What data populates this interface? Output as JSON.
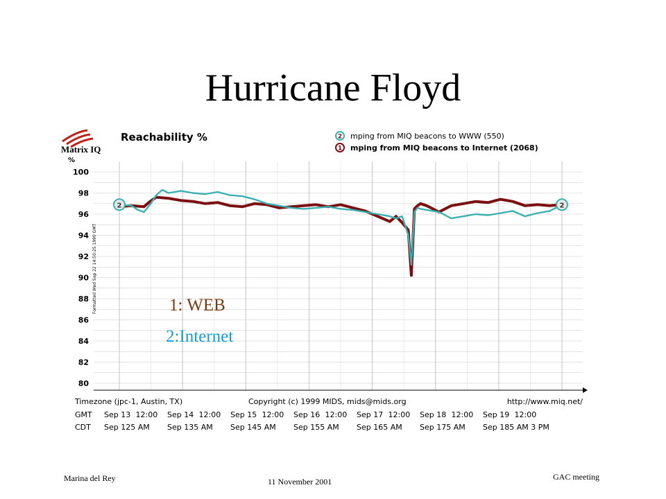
{
  "slide": {
    "title": "Hurricane Floyd",
    "overlay_web": "1: WEB",
    "overlay_internet": "2:Internet",
    "footer_left": "Marina del Rey",
    "footer_center": "11 November 2001",
    "footer_right": "GAC  meeting"
  },
  "colors": {
    "series1": "#7a1010",
    "series2": "#3ab0b0",
    "web_text": "#7a3a10",
    "internet_text": "#1a9ad8"
  },
  "chart_data": {
    "type": "line",
    "title": "Reachability %",
    "logo": "Matrix IQ",
    "ylabel": "%",
    "side_note": "Formatted Wed Sep 22 14:50:25 1999 GMT",
    "ylim": [
      80,
      100
    ],
    "yticks": [
      "100",
      "98",
      "96",
      "94",
      "92",
      "90",
      "88",
      "86",
      "84",
      "82",
      "80"
    ],
    "grid": true,
    "legend_position": "top-right",
    "legend": [
      {
        "marker": "2",
        "label": "mping from MIQ beacons to WWW (550)"
      },
      {
        "marker": "1",
        "label": "mping from MIQ beacons to Internet (2068)"
      }
    ],
    "x_note": {
      "timezone": "Timezone (jpc-1, Austin, TX)",
      "copyright": "Copyright (c) 1999 MIDS, mids@mids.org",
      "url": "http://www.miq.net/"
    },
    "xaxis_rows": [
      [
        "GMT",
        "Sep 13",
        "12:00",
        "Sep 14",
        "12:00",
        "Sep 15",
        "12:00",
        "Sep 16",
        "12:00",
        "Sep 17",
        "12:00",
        "Sep 18",
        "12:00",
        "Sep 19",
        "12:00"
      ],
      [
        "CDT",
        "Sep 125 AM",
        "Sep 135 AM",
        "Sep 145 AM",
        "Sep 155 AM",
        "Sep 165 AM",
        "Sep 175 AM",
        "Sep 185 AM 3 PM"
      ]
    ],
    "series": [
      {
        "marker": "1",
        "x": [
          0,
          0.2,
          0.4,
          0.5,
          0.6,
          0.8,
          1,
          1.2,
          1.4,
          1.6,
          1.8,
          2,
          2.2,
          2.4,
          2.6,
          2.8,
          3,
          3.2,
          3.4,
          3.6,
          3.8,
          4,
          4.2,
          4.4,
          4.5,
          4.6,
          4.7,
          4.75,
          4.8,
          4.85,
          4.9,
          5,
          5.2,
          5.4,
          5.6,
          5.8,
          6,
          6.2,
          6.4,
          6.6,
          6.8,
          7,
          7.2
        ],
        "values": [
          96.7,
          96.8,
          96.7,
          97.2,
          97.6,
          97.5,
          97.3,
          97.2,
          97.0,
          97.1,
          96.8,
          96.7,
          97.0,
          96.9,
          96.6,
          96.7,
          96.8,
          96.9,
          96.7,
          96.9,
          96.6,
          96.3,
          95.8,
          95.3,
          95.8,
          95.2,
          94.5,
          90.2,
          96.5,
          96.8,
          97.0,
          96.8,
          96.2,
          96.8,
          97.0,
          97.2,
          97.1,
          97.4,
          97.2,
          96.8,
          96.9,
          96.8,
          96.9
        ]
      },
      {
        "marker": "2",
        "x": [
          0,
          0.2,
          0.3,
          0.4,
          0.5,
          0.6,
          0.7,
          0.8,
          1,
          1.2,
          1.4,
          1.6,
          1.8,
          2,
          2.2,
          2.4,
          2.6,
          2.8,
          3,
          3.2,
          3.4,
          3.6,
          3.8,
          4,
          4.2,
          4.4,
          4.5,
          4.6,
          4.7,
          4.75,
          4.8,
          4.85,
          4.9,
          5,
          5.2,
          5.4,
          5.6,
          5.8,
          6,
          6.2,
          6.4,
          6.6,
          6.8,
          7,
          7.2
        ],
        "values": [
          96.9,
          96.8,
          96.4,
          96.2,
          96.9,
          97.8,
          98.3,
          98.0,
          98.2,
          98.0,
          97.9,
          98.1,
          97.8,
          97.7,
          97.4,
          97.0,
          96.8,
          96.6,
          96.5,
          96.6,
          96.7,
          96.5,
          96.4,
          96.2,
          96.0,
          95.8,
          95.6,
          95.8,
          94.0,
          91.2,
          96.2,
          96.6,
          96.5,
          96.4,
          96.2,
          95.6,
          95.8,
          96.0,
          95.9,
          96.1,
          96.3,
          95.8,
          96.1,
          96.3,
          96.9
        ]
      }
    ]
  }
}
